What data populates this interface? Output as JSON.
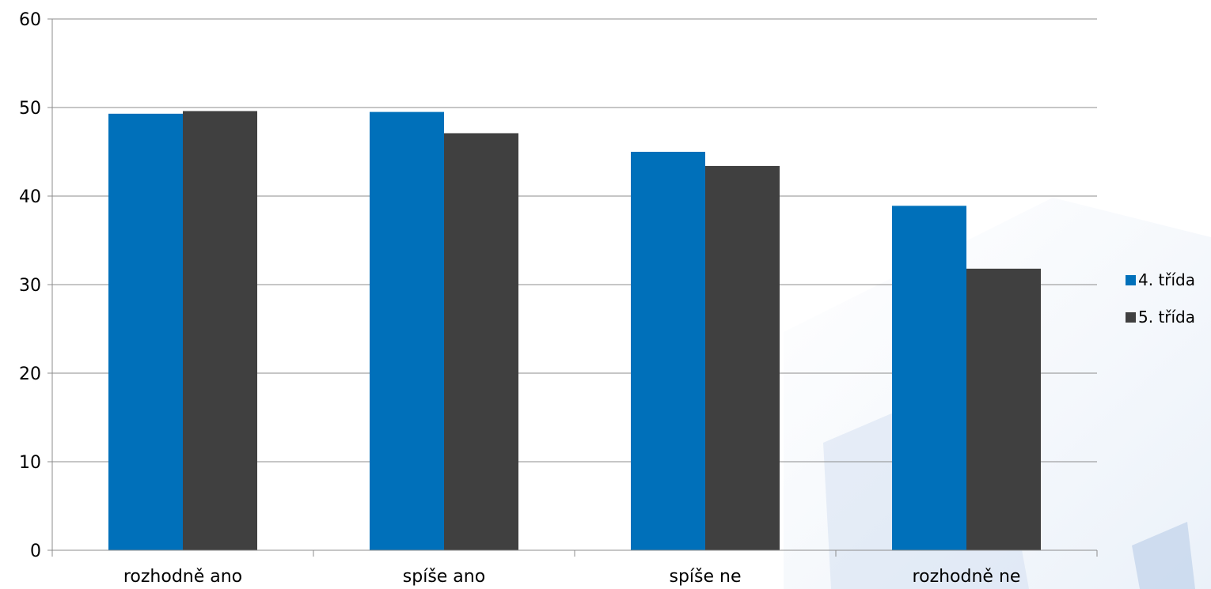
{
  "chart_data": {
    "type": "bar",
    "categories": [
      "rozhodně ano",
      "spíše ano",
      "spíše ne",
      "rozhodně ne"
    ],
    "series": [
      {
        "name": "4. třída",
        "values": [
          49.3,
          49.5,
          45.0,
          38.9
        ],
        "color": "#0070BA"
      },
      {
        "name": "5. třída",
        "values": [
          49.6,
          47.1,
          43.4,
          31.8
        ],
        "color": "#404040"
      }
    ],
    "ylim": [
      0,
      60
    ],
    "yticks": [
      0,
      10,
      20,
      30,
      40,
      50,
      60
    ],
    "grid": true,
    "legend_position": "right",
    "title": "",
    "xlabel": "",
    "ylabel": ""
  }
}
